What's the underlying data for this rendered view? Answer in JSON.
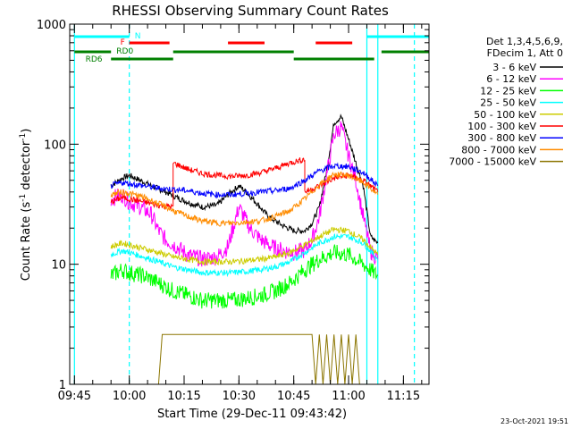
{
  "chart_data": {
    "type": "line",
    "title": "RHESSI Observing Summary Count Rates",
    "xlabel": "Start Time (29-Dec-11 09:43:42)",
    "ylabel_main": "Count Rate (s",
    "ylabel_sup1": "-1",
    "ylabel_mid": " detector",
    "ylabel_sup2": "-1",
    "ylabel_end": ")",
    "yscale": "log",
    "ylim": [
      1,
      1000
    ],
    "xlim": [
      "09:43:42",
      "11:22:00"
    ],
    "x_ticks": [
      "09:45",
      "10:00",
      "10:15",
      "10:30",
      "10:45",
      "11:00",
      "11:15"
    ],
    "y_ticks": [
      "1",
      "10",
      "100",
      "1000"
    ],
    "footer_timestamp": "23-Oct-2021 19:51",
    "legend_header": [
      "Det 1,3,4,5,6,9,",
      "FDecim 1, Att 0"
    ],
    "legend_position": "right",
    "colors": {
      "3-6": "#000000",
      "6-12": "#ff00ff",
      "12-25": "#00ff00",
      "25-50": "#00ffff",
      "50-100": "#cccc00",
      "100-300": "#ff0000",
      "300-800": "#0000ff",
      "800-7000": "#ff8c00",
      "7000-15000": "#8b7500",
      "N": "#00ffff",
      "F": "#ff0000",
      "RD": "#008000"
    },
    "series": [
      {
        "name": "3 - 6 keV",
        "color": "#000000",
        "x": [
          "09:55",
          "09:58",
          "10:00",
          "10:03",
          "10:06",
          "10:10",
          "10:13",
          "10:17",
          "10:20",
          "10:24",
          "10:27",
          "10:30",
          "10:32",
          "10:35",
          "10:38",
          "10:42",
          "10:45",
          "10:48",
          "10:50",
          "10:52",
          "10:54",
          "10:56",
          "10:58",
          "11:00",
          "11:02",
          "11:04",
          "11:06",
          "11:08"
        ],
        "y": [
          45,
          52,
          55,
          50,
          45,
          40,
          36,
          32,
          30,
          31,
          38,
          45,
          40,
          32,
          25,
          21,
          19,
          19,
          22,
          30,
          60,
          150,
          170,
          110,
          70,
          45,
          17,
          15
        ]
      },
      {
        "name": "6 - 12 keV",
        "color": "#ff00ff",
        "x": [
          "09:55",
          "09:58",
          "10:00",
          "10:03",
          "10:06",
          "10:08",
          "10:10",
          "10:13",
          "10:16",
          "10:20",
          "10:24",
          "10:27",
          "10:30",
          "10:33",
          "10:36",
          "10:39",
          "10:42",
          "10:45",
          "10:48",
          "10:50",
          "10:52",
          "10:54",
          "10:56",
          "10:58",
          "11:00",
          "11:02",
          "11:04",
          "11:06",
          "11:08"
        ],
        "y": [
          35,
          38,
          33,
          30,
          26,
          19,
          16,
          14,
          12,
          11,
          11.5,
          14,
          30,
          20,
          16,
          14,
          13,
          12.5,
          13,
          16,
          25,
          55,
          120,
          140,
          80,
          50,
          25,
          13,
          11
        ]
      },
      {
        "name": "12 - 25 keV",
        "color": "#00ff00",
        "x": [
          "09:55",
          "09:58",
          "10:00",
          "10:04",
          "10:08",
          "10:12",
          "10:16",
          "10:20",
          "10:24",
          "10:28",
          "10:32",
          "10:36",
          "10:40",
          "10:44",
          "10:48",
          "10:52",
          "10:56",
          "11:00",
          "11:04",
          "11:08"
        ],
        "y": [
          8,
          9,
          8.5,
          8,
          7,
          6,
          5.5,
          5,
          5,
          5,
          5.2,
          5.5,
          6,
          7,
          9,
          11,
          12.5,
          12,
          10,
          8
        ]
      },
      {
        "name": "25 - 50 keV",
        "color": "#00ffff",
        "x": [
          "09:55",
          "09:58",
          "10:00",
          "10:04",
          "10:08",
          "10:12",
          "10:16",
          "10:20",
          "10:24",
          "10:28",
          "10:32",
          "10:36",
          "10:40",
          "10:44",
          "10:48",
          "10:52",
          "10:56",
          "11:00",
          "11:04",
          "11:08"
        ],
        "y": [
          12,
          13,
          12.5,
          11.5,
          10.5,
          9.5,
          9,
          8.5,
          8.5,
          8.5,
          8.7,
          9,
          9.5,
          10.5,
          12.5,
          15,
          17,
          17,
          15,
          11
        ]
      },
      {
        "name": "50 - 100 keV",
        "color": "#cccc00",
        "x": [
          "09:55",
          "09:58",
          "10:00",
          "10:04",
          "10:08",
          "10:12",
          "10:16",
          "10:20",
          "10:24",
          "10:28",
          "10:32",
          "10:36",
          "10:40",
          "10:44",
          "10:48",
          "10:52",
          "10:56",
          "11:00",
          "11:04",
          "11:08"
        ],
        "y": [
          14,
          15,
          14.5,
          13.5,
          12.5,
          11.5,
          11,
          10.5,
          10.5,
          10.5,
          10.7,
          11,
          11.5,
          12.5,
          14.5,
          17,
          19.5,
          19,
          16,
          12
        ]
      },
      {
        "name": "100 - 300 keV",
        "color": "#ff0000",
        "x": [
          "09:55",
          "09:58",
          "10:00",
          "10:04",
          "10:08",
          "10:12",
          "10:12",
          "10:16",
          "10:20",
          "10:24",
          "10:28",
          "10:32",
          "10:36",
          "10:40",
          "10:44",
          "10:48",
          "10:48",
          "10:52",
          "10:56",
          "11:00",
          "11:04",
          "11:08"
        ],
        "y": [
          33,
          36,
          35,
          33,
          31,
          30,
          70,
          62,
          57,
          55,
          54,
          55,
          58,
          63,
          70,
          75,
          40,
          45,
          52,
          55,
          50,
          40
        ]
      },
      {
        "name": "300 - 800 keV",
        "color": "#0000ff",
        "x": [
          "09:55",
          "09:58",
          "10:00",
          "10:04",
          "10:08",
          "10:12",
          "10:16",
          "10:20",
          "10:24",
          "10:28",
          "10:32",
          "10:36",
          "10:40",
          "10:44",
          "10:48",
          "10:52",
          "10:56",
          "11:00",
          "11:04",
          "11:08"
        ],
        "y": [
          45,
          48,
          47,
          45,
          43,
          42,
          41,
          39,
          38,
          38,
          39,
          40,
          41,
          43,
          50,
          60,
          66,
          65,
          58,
          45
        ]
      },
      {
        "name": "800 - 7000 keV",
        "color": "#ff8c00",
        "x": [
          "09:55",
          "09:58",
          "10:00",
          "10:04",
          "10:08",
          "10:12",
          "10:16",
          "10:20",
          "10:24",
          "10:28",
          "10:32",
          "10:36",
          "10:40",
          "10:44",
          "10:48",
          "10:52",
          "10:56",
          "11:00",
          "11:04",
          "11:08"
        ],
        "y": [
          38,
          40,
          39,
          36,
          32,
          28,
          25,
          23,
          22,
          22,
          22.5,
          23,
          25,
          28,
          35,
          46,
          56,
          55,
          48,
          38
        ]
      },
      {
        "name": "7000 - 15000 keV",
        "color": "#8b7500",
        "x": [
          "10:08",
          "10:09",
          "10:50",
          "10:51",
          "10:52",
          "10:53",
          "10:54",
          "10:55",
          "10:56",
          "10:57",
          "10:58",
          "10:59",
          "11:00",
          "11:01",
          "11:02",
          "11:03"
        ],
        "y": [
          1,
          2.6,
          2.6,
          1,
          2.6,
          1,
          2.6,
          1,
          2.6,
          1,
          2.6,
          1,
          2.6,
          1,
          2.6,
          1
        ]
      }
    ],
    "flags": [
      {
        "label": "N",
        "color": "#00ffff",
        "level": 1,
        "segments": [
          [
            "09:45",
            "10:00"
          ],
          [
            "11:05",
            "11:22"
          ]
        ]
      },
      {
        "label": "F",
        "color": "#ff0000",
        "level": 2,
        "segments": [
          [
            "10:00",
            "10:11"
          ],
          [
            "10:27",
            "10:37"
          ],
          [
            "10:51",
            "11:01"
          ]
        ]
      },
      {
        "label": "RD0",
        "color": "#008000",
        "level": 3,
        "segments": [
          [
            "09:45",
            "09:55"
          ],
          [
            "10:12",
            "10:45"
          ],
          [
            "11:09",
            "11:22"
          ]
        ]
      },
      {
        "label": "RD6",
        "color": "#008000",
        "level": 4,
        "segments": [
          [
            "09:55",
            "10:12"
          ],
          [
            "10:45",
            "11:07"
          ]
        ]
      }
    ],
    "vertical_lines": [
      {
        "time": "09:45",
        "style": "solid",
        "color": "#00ffff"
      },
      {
        "time": "10:00",
        "style": "dashed",
        "color": "#00ffff"
      },
      {
        "time": "11:05",
        "style": "solid",
        "color": "#00ffff"
      },
      {
        "time": "11:08",
        "style": "solid",
        "color": "#00ffff"
      },
      {
        "time": "11:18",
        "style": "dashed",
        "color": "#00ffff"
      }
    ]
  }
}
